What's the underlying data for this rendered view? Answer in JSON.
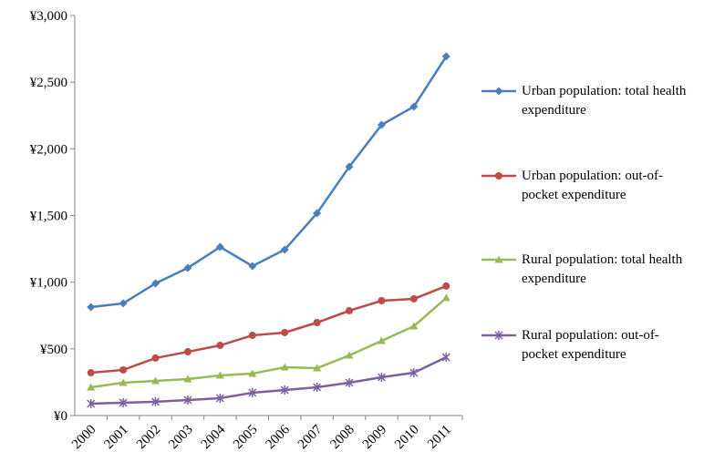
{
  "chart_data": {
    "type": "line",
    "categories": [
      "2000",
      "2001",
      "2002",
      "2003",
      "2004",
      "2005",
      "2006",
      "2007",
      "2008",
      "2009",
      "2010",
      "2011"
    ],
    "series": [
      {
        "name": "Urban population: total health expenditure",
        "color": "#4a7ebb",
        "marker": "diamond",
        "values": [
          813,
          841,
          991,
          1107,
          1264,
          1121,
          1244,
          1517,
          1866,
          2180,
          2317,
          2693
        ]
      },
      {
        "name": "Urban population: out-of-pocket expenditure",
        "color": "#be4b48",
        "marker": "circle",
        "values": [
          321,
          342,
          431,
          478,
          526,
          601,
          622,
          697,
          786,
          861,
          875,
          971
        ]
      },
      {
        "name": "Rural population: total health expenditure",
        "color": "#98b954",
        "marker": "triangle",
        "values": [
          212,
          246,
          260,
          273,
          301,
          314,
          362,
          355,
          451,
          560,
          670,
          882
        ]
      },
      {
        "name": "Rural population: out-of-pocket expenditure",
        "color": "#7d60a0",
        "marker": "asterisk",
        "values": [
          89,
          96,
          103,
          116,
          130,
          171,
          191,
          212,
          246,
          287,
          321,
          437
        ]
      }
    ],
    "ylim": [
      0,
      3000
    ],
    "yticks": [
      {
        "value": 0,
        "label": "¥0"
      },
      {
        "value": 500,
        "label": "¥500"
      },
      {
        "value": 1000,
        "label": "¥1,000"
      },
      {
        "value": 1500,
        "label": "¥1,500"
      },
      {
        "value": 2000,
        "label": "¥2,000"
      },
      {
        "value": 2500,
        "label": "¥2,500"
      },
      {
        "value": 3000,
        "label": "¥3,000"
      }
    ],
    "legend": "right"
  }
}
